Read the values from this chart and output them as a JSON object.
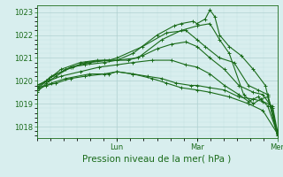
{
  "bg_color": "#d8eeee",
  "line_color": "#1a6b1a",
  "marker": "+",
  "markersize": 3,
  "linewidth": 0.8,
  "ylim": [
    1017.5,
    1023.3
  ],
  "yticks": [
    1018,
    1019,
    1020,
    1021,
    1022,
    1023
  ],
  "xlabel": "Pression niveau de la mer( hPa )",
  "xlabel_fontsize": 7.5,
  "tick_fontsize": 6,
  "xtick_labels": [
    "Lun",
    "Mar",
    "Mer"
  ],
  "xtick_positions": [
    0.333,
    0.666,
    1.0
  ],
  "grid_major_color": "#b0d0d0",
  "grid_minor_color": "#c4e0e0",
  "series": [
    [
      0.0,
      1019.8,
      0.04,
      1020.0,
      0.1,
      1020.5,
      0.18,
      1020.8,
      0.25,
      1020.9,
      0.333,
      1020.9,
      0.4,
      1021.2,
      0.5,
      1022.0,
      0.57,
      1022.4,
      0.6,
      1022.5,
      0.65,
      1022.6,
      0.666,
      1022.5,
      0.7,
      1022.7,
      0.72,
      1023.1,
      0.74,
      1022.8,
      0.76,
      1022.0,
      0.8,
      1021.5,
      0.85,
      1021.1,
      0.9,
      1020.5,
      0.95,
      1019.8,
      1.0,
      1017.6
    ],
    [
      0.0,
      1019.7,
      0.05,
      1020.1,
      0.12,
      1020.5,
      0.2,
      1020.8,
      0.28,
      1020.9,
      0.333,
      1020.9,
      0.42,
      1021.0,
      0.52,
      1021.8,
      0.6,
      1022.2,
      0.666,
      1022.4,
      0.72,
      1022.5,
      0.76,
      1021.8,
      0.8,
      1021.2,
      0.86,
      1019.4,
      0.9,
      1019.0,
      0.93,
      1019.2,
      0.96,
      1019.3,
      1.0,
      1017.7
    ],
    [
      0.0,
      1019.6,
      0.06,
      1020.2,
      0.15,
      1020.6,
      0.22,
      1020.8,
      0.3,
      1020.9,
      0.333,
      1021.0,
      0.44,
      1021.5,
      0.54,
      1022.1,
      0.62,
      1022.2,
      0.666,
      1021.8,
      0.7,
      1021.5,
      0.76,
      1021.0,
      0.82,
      1020.8,
      0.88,
      1019.8,
      0.92,
      1019.6,
      0.96,
      1019.4,
      1.0,
      1017.8
    ],
    [
      0.0,
      1019.5,
      0.04,
      1019.9,
      0.08,
      1020.2,
      0.14,
      1020.6,
      0.2,
      1020.7,
      0.28,
      1020.8,
      0.333,
      1020.9,
      0.38,
      1020.9,
      0.44,
      1021.1,
      0.5,
      1021.4,
      0.56,
      1021.6,
      0.62,
      1021.7,
      0.666,
      1021.5,
      0.72,
      1021.0,
      0.78,
      1020.5,
      0.84,
      1019.8,
      0.9,
      1019.5,
      0.94,
      1019.4,
      0.98,
      1018.8,
      1.0,
      1017.6
    ],
    [
      0.0,
      1019.8,
      0.05,
      1020.0,
      0.1,
      1020.2,
      0.18,
      1020.4,
      0.26,
      1020.6,
      0.333,
      1020.7,
      0.4,
      1020.8,
      0.48,
      1020.9,
      0.56,
      1020.9,
      0.62,
      1020.7,
      0.666,
      1020.6,
      0.72,
      1020.3,
      0.78,
      1019.8,
      0.84,
      1019.4,
      0.88,
      1019.1,
      0.92,
      1019.3,
      0.96,
      1018.9,
      1.0,
      1017.7
    ],
    [
      0.0,
      1019.7,
      0.04,
      1019.8,
      0.08,
      1019.9,
      0.14,
      1020.1,
      0.2,
      1020.2,
      0.28,
      1020.3,
      0.333,
      1020.4,
      0.4,
      1020.3,
      0.46,
      1020.2,
      0.52,
      1020.1,
      0.58,
      1019.9,
      0.64,
      1019.8,
      0.666,
      1019.8,
      0.72,
      1019.7,
      0.78,
      1019.6,
      0.84,
      1019.3,
      0.9,
      1019.2,
      0.94,
      1019.1,
      0.98,
      1018.9,
      1.0,
      1017.8
    ],
    [
      0.0,
      1019.6,
      0.06,
      1019.9,
      0.12,
      1020.1,
      0.22,
      1020.3,
      0.3,
      1020.3,
      0.333,
      1020.4,
      0.4,
      1020.3,
      0.48,
      1020.1,
      0.54,
      1019.9,
      0.6,
      1019.7,
      0.666,
      1019.6,
      0.72,
      1019.5,
      0.8,
      1019.3,
      0.88,
      1019.0,
      0.94,
      1018.7,
      1.0,
      1017.7
    ]
  ]
}
